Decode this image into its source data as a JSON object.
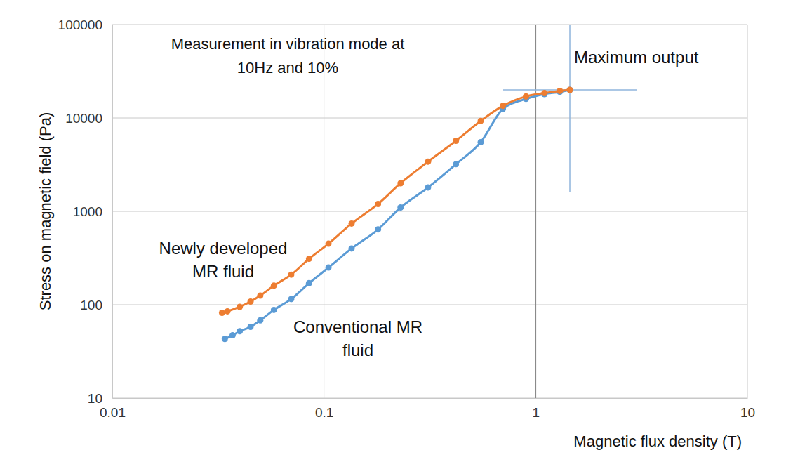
{
  "chart_data": {
    "type": "line",
    "log": true,
    "grid": true,
    "marker": "circle",
    "x_label": "Magnetic flux density (T)",
    "y_label": "Stress on magnetic field (Pa)",
    "xlim": [
      0.01,
      10
    ],
    "xticks": [
      0.01,
      0.1,
      1,
      10
    ],
    "ylim": [
      10,
      100000
    ],
    "yticks": [
      10,
      100,
      1000,
      10000,
      100000
    ],
    "annotations": [
      {
        "text": [
          "Measurement in vibration mode at",
          "10Hz and 10%"
        ]
      }
    ],
    "max_output": {
      "text": "Maximum output",
      "x": 1.45,
      "y": 20000
    },
    "series": [
      {
        "name": "Newly developed MR fluid",
        "color": "#ed7d31",
        "x": [
          0.033,
          0.035,
          0.04,
          0.045,
          0.05,
          0.058,
          0.07,
          0.085,
          0.105,
          0.135,
          0.18,
          0.23,
          0.31,
          0.42,
          0.55,
          0.7,
          0.9,
          1.1,
          1.3,
          1.45
        ],
        "values": [
          82,
          85,
          95,
          108,
          125,
          160,
          210,
          310,
          450,
          740,
          1200,
          2000,
          3400,
          5700,
          9300,
          13500,
          17000,
          18500,
          19500,
          20000
        ]
      },
      {
        "name": "Conventional MR fluid",
        "color": "#5b9bd5",
        "x": [
          0.034,
          0.037,
          0.04,
          0.045,
          0.05,
          0.058,
          0.07,
          0.085,
          0.105,
          0.135,
          0.18,
          0.23,
          0.31,
          0.42,
          0.55,
          0.7,
          0.9,
          1.1,
          1.3,
          1.45
        ],
        "values": [
          43,
          47,
          52,
          58,
          68,
          88,
          115,
          170,
          250,
          400,
          640,
          1100,
          1800,
          3200,
          5500,
          12500,
          16000,
          18000,
          19000,
          20000
        ]
      }
    ]
  }
}
